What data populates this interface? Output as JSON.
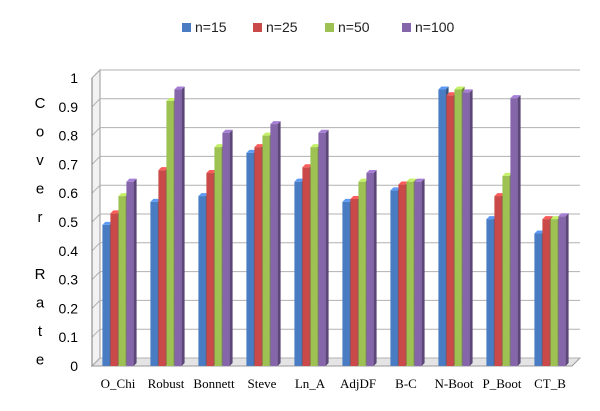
{
  "chart_data": {
    "type": "bar",
    "title": "",
    "xlabel": "",
    "ylabel": "Cover Rate",
    "ylabel_lines": [
      "C",
      "o",
      "v",
      "e",
      "r",
      "",
      "R",
      "a",
      "t",
      "e"
    ],
    "ylim": [
      0,
      1
    ],
    "yticks": [
      0,
      0.1,
      0.2,
      0.3,
      0.4,
      0.5,
      0.6,
      0.7,
      0.8,
      0.9,
      1
    ],
    "ytick_labels": [
      "0",
      "0.1",
      "0.2",
      "0.3",
      "0.4",
      "0.5",
      "0.6",
      "0.7",
      "0.8",
      "0.9",
      "1"
    ],
    "grid": true,
    "legend_position": "top",
    "categories": [
      "O_Chi",
      "Robust",
      "Bonnett",
      "Steve",
      "Ln_A",
      "AdjDF",
      "B-C",
      "N-Boot",
      "P_Boot",
      "CT_B"
    ],
    "series": [
      {
        "name": "n=15",
        "color": "#4a7cc4",
        "values": [
          0.49,
          0.57,
          0.59,
          0.74,
          0.64,
          0.57,
          0.61,
          0.96,
          0.51,
          0.46
        ]
      },
      {
        "name": "n=25",
        "color": "#c94a48",
        "values": [
          0.53,
          0.68,
          0.67,
          0.76,
          0.69,
          0.58,
          0.63,
          0.94,
          0.59,
          0.51
        ]
      },
      {
        "name": "n=50",
        "color": "#9dc153",
        "values": [
          0.59,
          0.92,
          0.76,
          0.8,
          0.76,
          0.64,
          0.64,
          0.96,
          0.66,
          0.51
        ]
      },
      {
        "name": "n=100",
        "color": "#8566ab",
        "values": [
          0.64,
          0.96,
          0.81,
          0.84,
          0.81,
          0.67,
          0.64,
          0.95,
          0.93,
          0.52
        ]
      }
    ]
  }
}
